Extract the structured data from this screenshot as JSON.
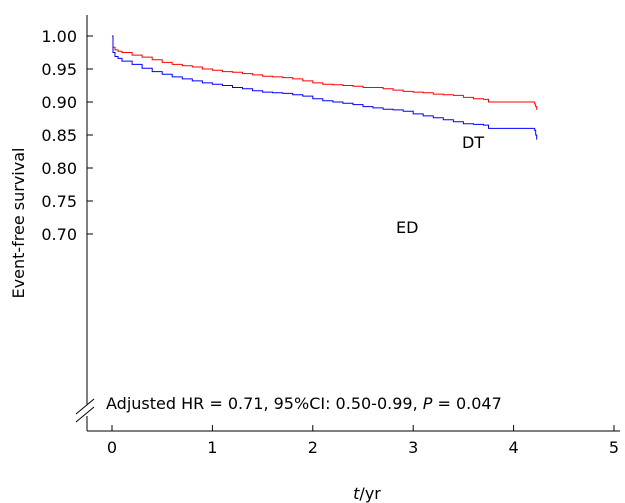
{
  "chart_data": {
    "type": "line",
    "title": "",
    "xlabel_italic": "t",
    "xlabel_rest": "/yr",
    "ylabel": "Event-free survival",
    "xlim": [
      -0.2,
      5
    ],
    "ylim": [
      0.7,
      1.0
    ],
    "x_ticks": [
      0,
      1,
      2,
      3,
      4,
      5
    ],
    "x_tick_labels": [
      "0",
      "1",
      "2",
      "3",
      "4",
      "5"
    ],
    "y_ticks": [
      0.7,
      0.75,
      0.8,
      0.85,
      0.9,
      0.95,
      1.0
    ],
    "y_tick_labels": [
      "0.70",
      "0.75",
      "0.80",
      "0.85",
      "0.90",
      "0.95",
      "1.00"
    ],
    "grid": false,
    "legend": "none",
    "y_axis_break": true,
    "annotation": {
      "prefix": "Adjusted HR = 0.71, 95%CI: 0.50-0.99, ",
      "p_symbol": "P",
      "suffix": " = 0.047"
    },
    "series": [
      {
        "name": "DT",
        "color": "#ff0000",
        "x": [
          0,
          0.01,
          0.03,
          0.06,
          0.1,
          0.2,
          0.3,
          0.4,
          0.5,
          0.6,
          0.7,
          0.8,
          0.9,
          1.0,
          1.1,
          1.2,
          1.3,
          1.4,
          1.5,
          1.6,
          1.7,
          1.8,
          1.9,
          2.0,
          2.1,
          2.2,
          2.3,
          2.4,
          2.5,
          2.6,
          2.7,
          2.8,
          2.9,
          3.0,
          3.1,
          3.2,
          3.3,
          3.4,
          3.5,
          3.6,
          3.7,
          3.75,
          3.8,
          3.9,
          4.0,
          4.1,
          4.2,
          4.21,
          4.22,
          4.23
        ],
        "y": [
          1.0,
          0.983,
          0.979,
          0.977,
          0.975,
          0.971,
          0.968,
          0.964,
          0.96,
          0.957,
          0.955,
          0.953,
          0.95,
          0.948,
          0.946,
          0.945,
          0.943,
          0.941,
          0.939,
          0.938,
          0.937,
          0.935,
          0.932,
          0.929,
          0.927,
          0.926,
          0.925,
          0.924,
          0.922,
          0.922,
          0.92,
          0.918,
          0.916,
          0.915,
          0.914,
          0.912,
          0.911,
          0.91,
          0.907,
          0.905,
          0.904,
          0.9,
          0.9,
          0.9,
          0.9,
          0.9,
          0.9,
          0.897,
          0.893,
          0.888
        ]
      },
      {
        "name": "ED",
        "color": "#0000ff",
        "x": [
          0,
          0.01,
          0.03,
          0.06,
          0.1,
          0.2,
          0.3,
          0.4,
          0.5,
          0.6,
          0.7,
          0.8,
          0.9,
          1.0,
          1.1,
          1.2,
          1.3,
          1.4,
          1.5,
          1.6,
          1.7,
          1.8,
          1.9,
          2.0,
          2.1,
          2.2,
          2.3,
          2.4,
          2.5,
          2.6,
          2.7,
          2.8,
          2.9,
          3.0,
          3.1,
          3.2,
          3.3,
          3.4,
          3.5,
          3.6,
          3.7,
          3.75,
          3.8,
          3.9,
          4.0,
          4.1,
          4.2,
          4.21,
          4.22,
          4.23
        ],
        "y": [
          1.0,
          0.975,
          0.969,
          0.966,
          0.962,
          0.957,
          0.951,
          0.946,
          0.942,
          0.938,
          0.935,
          0.932,
          0.929,
          0.927,
          0.925,
          0.922,
          0.92,
          0.917,
          0.915,
          0.914,
          0.913,
          0.911,
          0.909,
          0.905,
          0.902,
          0.9,
          0.898,
          0.896,
          0.893,
          0.891,
          0.889,
          0.888,
          0.886,
          0.882,
          0.879,
          0.876,
          0.873,
          0.87,
          0.867,
          0.866,
          0.865,
          0.86,
          0.86,
          0.86,
          0.86,
          0.86,
          0.86,
          0.857,
          0.85,
          0.843
        ]
      }
    ]
  }
}
